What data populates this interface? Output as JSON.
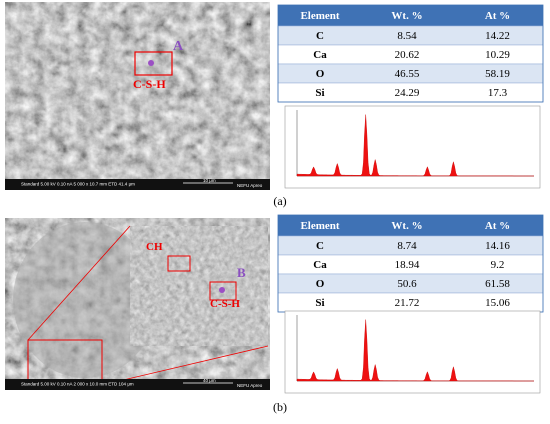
{
  "panels": [
    {
      "label": "(a)",
      "point": "A",
      "phase": "C-S-H",
      "footer": "Standard 5.00 kV 0.10 nA 5 000 x 10.7 mm ETD 41.4 μm",
      "scale": "10 μm",
      "lab": "NEFU Apreo",
      "table": {
        "header": [
          "Element",
          "Wt. %",
          "At %"
        ],
        "rows": [
          [
            "C",
            8.54,
            14.22
          ],
          [
            "Ca",
            20.62,
            10.29
          ],
          [
            "O",
            46.55,
            58.19
          ],
          [
            "Si",
            24.29,
            17.3
          ]
        ]
      }
    },
    {
      "label": "(b)",
      "point": "B",
      "phase": "C-S-H",
      "crystal": "CH",
      "footer": "Standard 5.00 kV 0.10 nA 2 000 x 10.0 mm ETD 104 μm",
      "scale": "40 μm",
      "lab": "NEFU Apreo",
      "table": {
        "header": [
          "Element",
          "Wt. %",
          "At %"
        ],
        "rows": [
          [
            "C",
            8.74,
            14.16
          ],
          [
            "Ca",
            18.94,
            9.2
          ],
          [
            "O",
            50.6,
            61.58
          ],
          [
            "Si",
            21.72,
            15.06
          ]
        ]
      }
    }
  ]
}
